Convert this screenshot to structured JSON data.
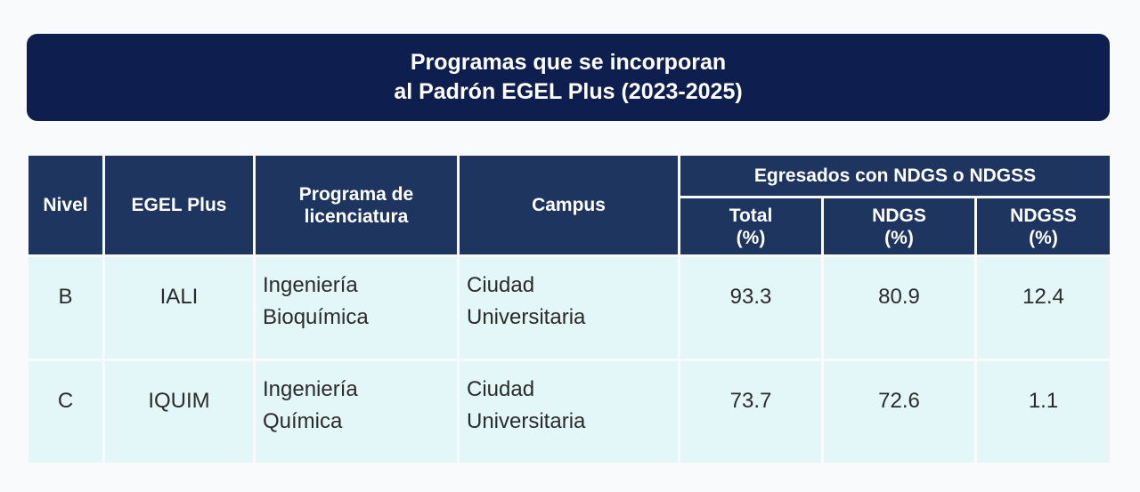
{
  "header": {
    "title_line1": "Programas que se incorporan",
    "title_line2": "al Padrón EGEL Plus (2023-2025)"
  },
  "table": {
    "headers": {
      "nivel": "Nivel",
      "egel_plus": "EGEL Plus",
      "programa_line1": "Programa de",
      "programa_line2": "licenciatura",
      "campus": "Campus",
      "egresados_group": "Egresados con NDGS o NDGSS",
      "total_line1": "Total",
      "total_line2": "(%)",
      "ndgs_line1": "NDGS",
      "ndgs_line2": "(%)",
      "ndgss_line1": "NDGSS",
      "ndgss_line2": "(%)"
    },
    "rows": [
      {
        "nivel": "B",
        "egel_plus": "IALI",
        "programa_line1": "Ingeniería",
        "programa_line2": "Bioquímica",
        "campus_line1": "Ciudad",
        "campus_line2": "Universitaria",
        "total": "93.3",
        "ndgs": "80.9",
        "ndgss": "12.4"
      },
      {
        "nivel": "C",
        "egel_plus": "IQUIM",
        "programa_line1": "Ingeniería",
        "programa_line2": "Química",
        "campus_line1": "Ciudad",
        "campus_line2": "Universitaria",
        "total": "73.7",
        "ndgs": "72.6",
        "ndgss": "1.1"
      }
    ]
  },
  "colors": {
    "banner": "#0e1e4f",
    "header_cells": "#1d355f",
    "body_cells": "#e3f6f8",
    "background": "#f9fafb"
  }
}
